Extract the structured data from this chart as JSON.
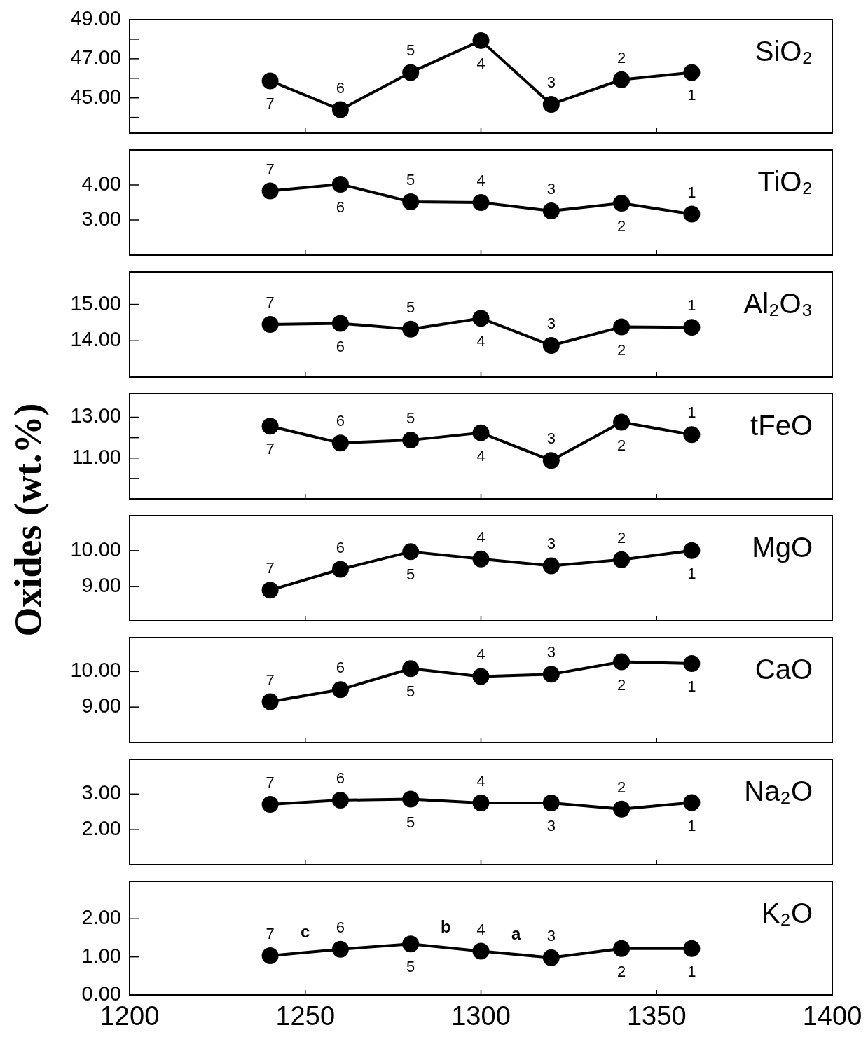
{
  "chart_data": [
    {
      "type": "line",
      "title": "SiO₂",
      "color": "#000000",
      "marker": "circle",
      "tick_labels": "y",
      "x": [
        1240,
        1260,
        1280,
        1300,
        1320,
        1340,
        1360
      ],
      "values": [
        45.87,
        44.4,
        46.3,
        47.93,
        44.67,
        45.93,
        46.3
      ],
      "xlim": [
        1200,
        1400
      ],
      "xticks": [
        1200,
        1250,
        1300,
        1350,
        1400
      ],
      "ylim": [
        43.2,
        49
      ],
      "yticks": [
        {
          "value": 44,
          "label": null
        },
        {
          "value": 45,
          "label": "45.00"
        },
        {
          "value": 46,
          "label": null
        },
        {
          "value": 47,
          "label": "47.00"
        },
        {
          "value": 48,
          "label": null
        },
        {
          "value": 49,
          "label": "49.00"
        }
      ],
      "annotations": [
        {
          "text": "7",
          "x": 1240,
          "y": 45.87
        },
        {
          "text": "6",
          "x": 1260,
          "y": 44.4
        },
        {
          "text": "5",
          "x": 1280,
          "y": 46.3
        },
        {
          "text": "4",
          "x": 1300,
          "y": 47.93
        },
        {
          "text": "3",
          "x": 1320,
          "y": 44.67
        },
        {
          "text": "2",
          "x": 1340,
          "y": 45.93
        },
        {
          "text": "1",
          "x": 1360,
          "y": 46.3
        }
      ]
    },
    {
      "type": "line",
      "title": "TiO₂",
      "color": "#000000",
      "marker": "circle",
      "tick_labels": "y",
      "x": [
        1240,
        1260,
        1280,
        1300,
        1320,
        1340,
        1360
      ],
      "values": [
        3.83,
        4.02,
        3.52,
        3.5,
        3.26,
        3.48,
        3.17
      ],
      "xlim": [
        1200,
        1400
      ],
      "xticks": [
        1200,
        1250,
        1300,
        1350,
        1400
      ],
      "ylim": [
        2,
        5
      ],
      "yticks": [
        {
          "value": 3,
          "label": "3.00"
        },
        {
          "value": 4,
          "label": "4.00"
        }
      ],
      "annotations": [
        {
          "text": "7",
          "x": 1240,
          "y": 3.83
        },
        {
          "text": "6",
          "x": 1260,
          "y": 4.02
        },
        {
          "text": "5",
          "x": 1280,
          "y": 3.52
        },
        {
          "text": "4",
          "x": 1300,
          "y": 3.5
        },
        {
          "text": "3",
          "x": 1320,
          "y": 3.26
        },
        {
          "text": "2",
          "x": 1340,
          "y": 3.48
        },
        {
          "text": "1",
          "x": 1360,
          "y": 3.17
        }
      ]
    },
    {
      "type": "line",
      "title": "Al₂O₃",
      "color": "#000000",
      "marker": "circle",
      "tick_labels": "y",
      "x": [
        1240,
        1260,
        1280,
        1300,
        1320,
        1340,
        1360
      ],
      "values": [
        14.45,
        14.48,
        14.32,
        14.62,
        13.87,
        14.38,
        14.37
      ],
      "xlim": [
        1200,
        1400
      ],
      "xticks": [
        1200,
        1250,
        1300,
        1350,
        1400
      ],
      "ylim": [
        13,
        15.9
      ],
      "yticks": [
        {
          "value": 14,
          "label": "14.00"
        },
        {
          "value": 15,
          "label": "15.00"
        }
      ],
      "annotations": [
        {
          "text": "7",
          "x": 1240,
          "y": 14.45
        },
        {
          "text": "6",
          "x": 1260,
          "y": 14.48
        },
        {
          "text": "5",
          "x": 1280,
          "y": 14.32
        },
        {
          "text": "4",
          "x": 1300,
          "y": 14.62
        },
        {
          "text": "3",
          "x": 1320,
          "y": 13.87
        },
        {
          "text": "2",
          "x": 1340,
          "y": 14.38
        },
        {
          "text": "1",
          "x": 1360,
          "y": 14.37
        }
      ]
    },
    {
      "type": "line",
      "title": "tFeO",
      "color": "#000000",
      "marker": "circle",
      "tick_labels": "y",
      "x": [
        1240,
        1260,
        1280,
        1300,
        1320,
        1340,
        1360
      ],
      "values": [
        12.56,
        11.74,
        11.88,
        12.24,
        10.88,
        12.76,
        12.15
      ],
      "xlim": [
        1200,
        1400
      ],
      "xticks": [
        1200,
        1250,
        1300,
        1350,
        1400
      ],
      "ylim": [
        9,
        14.15
      ],
      "yticks": [
        {
          "value": 10,
          "label": null
        },
        {
          "value": 11,
          "label": "11.00"
        },
        {
          "value": 12,
          "label": null
        },
        {
          "value": 13,
          "label": "13.00"
        }
      ],
      "annotations": [
        {
          "text": "7",
          "x": 1240,
          "y": 12.56
        },
        {
          "text": "6",
          "x": 1260,
          "y": 11.74
        },
        {
          "text": "5",
          "x": 1280,
          "y": 11.88
        },
        {
          "text": "4",
          "x": 1300,
          "y": 12.24
        },
        {
          "text": "3",
          "x": 1320,
          "y": 10.88
        },
        {
          "text": "2",
          "x": 1340,
          "y": 12.76
        },
        {
          "text": "1",
          "x": 1360,
          "y": 12.15
        }
      ]
    },
    {
      "type": "line",
      "title": "MgO",
      "ylabel": "Oxides (wt.%)",
      "color": "#000000",
      "marker": "circle",
      "tick_labels": "y",
      "x": [
        1240,
        1260,
        1280,
        1300,
        1320,
        1340,
        1360
      ],
      "values": [
        8.9,
        9.48,
        9.97,
        9.77,
        9.58,
        9.75,
        10.0
      ],
      "xlim": [
        1200,
        1400
      ],
      "xticks": [
        1200,
        1250,
        1300,
        1350,
        1400
      ],
      "ylim": [
        8.05,
        10.97
      ],
      "yticks": [
        {
          "value": 9,
          "label": "9.00"
        },
        {
          "value": 10,
          "label": "10.00"
        }
      ],
      "annotations": [
        {
          "text": "7",
          "x": 1240,
          "y": 8.9
        },
        {
          "text": "6",
          "x": 1260,
          "y": 9.48
        },
        {
          "text": "5",
          "x": 1280,
          "y": 9.97
        },
        {
          "text": "4",
          "x": 1300,
          "y": 9.77
        },
        {
          "text": "3",
          "x": 1320,
          "y": 9.58
        },
        {
          "text": "2",
          "x": 1340,
          "y": 9.75
        },
        {
          "text": "1",
          "x": 1360,
          "y": 10.0
        }
      ]
    },
    {
      "type": "line",
      "title": "CaO",
      "color": "#000000",
      "marker": "circle",
      "tick_labels": "y",
      "x": [
        1240,
        1260,
        1280,
        1300,
        1320,
        1340,
        1360
      ],
      "values": [
        9.15,
        9.49,
        10.08,
        9.86,
        9.92,
        10.27,
        10.22
      ],
      "xlim": [
        1200,
        1400
      ],
      "xticks": [
        1200,
        1250,
        1300,
        1350,
        1400
      ],
      "ylim": [
        8,
        10.95
      ],
      "yticks": [
        {
          "value": 9,
          "label": "9.00"
        },
        {
          "value": 10,
          "label": "10.00"
        }
      ],
      "annotations": [
        {
          "text": "7",
          "x": 1240,
          "y": 9.15
        },
        {
          "text": "6",
          "x": 1260,
          "y": 9.49
        },
        {
          "text": "5",
          "x": 1280,
          "y": 10.08
        },
        {
          "text": "4",
          "x": 1300,
          "y": 9.86
        },
        {
          "text": "3",
          "x": 1320,
          "y": 9.92
        },
        {
          "text": "2",
          "x": 1340,
          "y": 10.27
        },
        {
          "text": "1",
          "x": 1360,
          "y": 10.22
        }
      ]
    },
    {
      "type": "line",
      "title": "Na₂O",
      "color": "#000000",
      "marker": "circle",
      "tick_labels": "y",
      "x": [
        1240,
        1260,
        1280,
        1300,
        1320,
        1340,
        1360
      ],
      "values": [
        2.71,
        2.83,
        2.86,
        2.75,
        2.75,
        2.58,
        2.76
      ],
      "xlim": [
        1200,
        1400
      ],
      "xticks": [
        1200,
        1250,
        1300,
        1350,
        1400
      ],
      "ylim": [
        1.02,
        3.97
      ],
      "yticks": [
        {
          "value": 2,
          "label": "2.00"
        },
        {
          "value": 3,
          "label": "3.00"
        }
      ],
      "annotations": [
        {
          "text": "7",
          "x": 1240,
          "y": 2.71
        },
        {
          "text": "6",
          "x": 1260,
          "y": 2.83
        },
        {
          "text": "5",
          "x": 1280,
          "y": 2.86
        },
        {
          "text": "4",
          "x": 1300,
          "y": 2.75
        },
        {
          "text": "3",
          "x": 1320,
          "y": 2.75
        },
        {
          "text": "2",
          "x": 1340,
          "y": 2.58
        },
        {
          "text": "1",
          "x": 1360,
          "y": 2.76
        }
      ]
    },
    {
      "type": "line",
      "title": "K₂O",
      "color": "#000000",
      "marker": "circle",
      "x": [
        1240,
        1260,
        1280,
        1300,
        1320,
        1340,
        1360
      ],
      "values": [
        1.03,
        1.2,
        1.34,
        1.15,
        0.98,
        1.22,
        1.22
      ],
      "xlim": [
        1200,
        1400
      ],
      "xticks": [
        1200,
        1250,
        1300,
        1350,
        1400
      ],
      "ylim": [
        0,
        2.98
      ],
      "yticks": [
        {
          "value": 0,
          "label": "0.00"
        },
        {
          "value": 1,
          "label": "1.00"
        },
        {
          "value": 2,
          "label": "2.00"
        }
      ],
      "annotations": [
        {
          "text": "7",
          "x": 1240,
          "y": 1.03
        },
        {
          "text": "c",
          "x": 1250,
          "y": 1.115
        },
        {
          "text": "6",
          "x": 1260,
          "y": 1.2
        },
        {
          "text": "5",
          "x": 1280,
          "y": 1.34
        },
        {
          "text": "b",
          "x": 1290,
          "y": 1.245
        },
        {
          "text": "4",
          "x": 1300,
          "y": 1.15
        },
        {
          "text": "a",
          "x": 1310,
          "y": 1.065
        },
        {
          "text": "3",
          "x": 1320,
          "y": 0.98
        },
        {
          "text": "2",
          "x": 1340,
          "y": 1.22
        },
        {
          "text": "1",
          "x": 1360,
          "y": 1.22
        }
      ]
    }
  ]
}
